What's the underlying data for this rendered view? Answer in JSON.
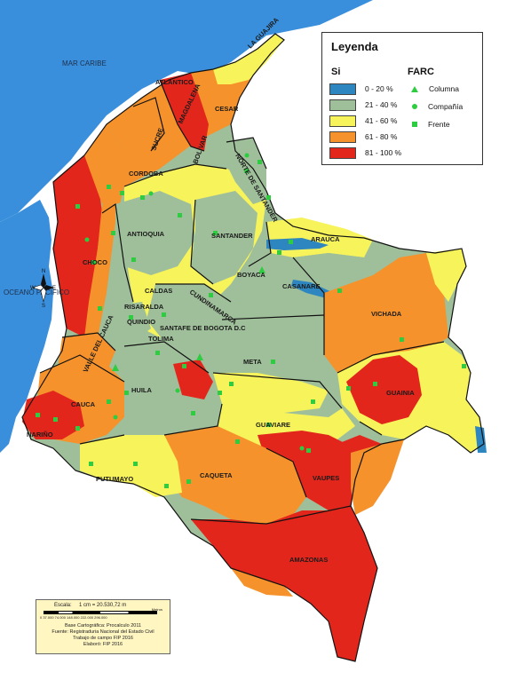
{
  "legend": {
    "title": "Leyenda",
    "si_heading": "Si",
    "farc_heading": "FARC",
    "ranges": [
      {
        "label": "0 - 20 %",
        "color": "#2e86c1"
      },
      {
        "label": "21 - 40 %",
        "color": "#9fbf9a"
      },
      {
        "label": "41 - 60 %",
        "color": "#f7f35a"
      },
      {
        "label": "61 - 80 %",
        "color": "#f5922b"
      },
      {
        "label": "81 - 100 %",
        "color": "#e3261c"
      }
    ],
    "farc_symbols": [
      {
        "label": "Columna",
        "icon": "triangle-icon"
      },
      {
        "label": "Compañía",
        "icon": "circle-icon"
      },
      {
        "label": "Frente",
        "icon": "square-icon"
      }
    ]
  },
  "seas": {
    "caribbean": "MAR CARIBE",
    "pacific": "OCEANO PACIFICO"
  },
  "departments": {
    "la_guajira": "LA GUAJIRA",
    "atlantico": "ATLANTICO",
    "magdalena": "MAGDALENA",
    "cesar": "CESAR",
    "sucre": "SUCRE",
    "bolivar": "BOLIVAR",
    "cordoba": "CORDOBA",
    "norte_de_santander": "NORTE DE SANTANDER",
    "antioquia": "ANTIOQUIA",
    "santander": "SANTANDER",
    "arauca": "ARAUCA",
    "boyaca": "BOYACA",
    "casanare": "CASANARE",
    "choco": "CHOCO",
    "caldas": "CALDAS",
    "risaralda": "RISARALDA",
    "cundinamarca": "CUNDINAMARCA",
    "quindio": "QUINDIO",
    "bogota": "SANTAFE DE BOGOTA D.C",
    "tolima": "TOLIMA",
    "vichada": "VICHADA",
    "valle": "VALLE DEL CAUCA",
    "meta": "META",
    "huila": "HUILA",
    "guainia": "GUAINIA",
    "cauca": "CAUCA",
    "guaviare": "GUAVIARE",
    "narino": "NARIÑO",
    "vaupes": "VAUPES",
    "putumayo": "PUTUMAYO",
    "caqueta": "CAQUETA",
    "amazonas": "AMAZONAS"
  },
  "compass": {
    "n": "N",
    "s": "S",
    "e": "E",
    "w": "W"
  },
  "scale": {
    "label": "Escala:",
    "value": "1 cm = 20.530,72 m",
    "units": "Metros",
    "ticks": "0  37.000 74.000       148.000      222.000      296.000",
    "credit1": "Base Cartográfica: Procalculo 2011",
    "credit2": "Fuente: Registraduria Nacional del Estado Civil",
    "credit3": "Trabajo de campo FIP 2016",
    "credit4": "Elaboró: FIP 2016"
  }
}
